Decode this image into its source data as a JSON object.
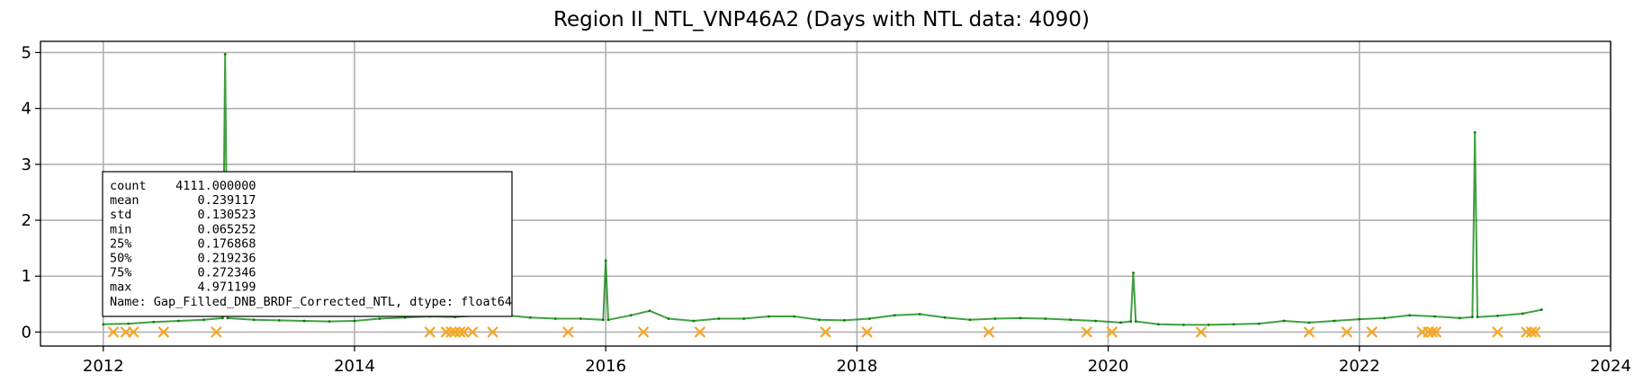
{
  "title": "Region II_NTL_VNP46A2 (Days with NTL data: 4090)",
  "chart_data": {
    "type": "line",
    "title": "Region II_NTL_VNP46A2 (Days with NTL data: 4090)",
    "xlabel": "",
    "ylabel": "",
    "xlim": [
      2011.5,
      2024.0
    ],
    "ylim": [
      -0.25,
      5.2
    ],
    "grid": true,
    "x_ticks": [
      "2012",
      "2014",
      "2016",
      "2018",
      "2020",
      "2022",
      "2024"
    ],
    "y_ticks": [
      "0",
      "1",
      "2",
      "3",
      "4",
      "5"
    ],
    "series": [
      {
        "color": "#008000",
        "style": "line",
        "x": [
          2012.0,
          2012.2,
          2012.4,
          2012.6,
          2012.8,
          2012.95,
          2012.97,
          2012.99,
          2013.2,
          2013.4,
          2013.6,
          2013.8,
          2014.0,
          2014.2,
          2014.4,
          2014.6,
          2014.8,
          2015.0,
          2015.2,
          2015.4,
          2015.6,
          2015.8,
          2015.98,
          2016.0,
          2016.02,
          2016.2,
          2016.35,
          2016.5,
          2016.7,
          2016.9,
          2017.1,
          2017.3,
          2017.5,
          2017.7,
          2017.9,
          2018.1,
          2018.3,
          2018.5,
          2018.7,
          2018.9,
          2019.1,
          2019.3,
          2019.5,
          2019.7,
          2019.9,
          2020.1,
          2020.18,
          2020.2,
          2020.22,
          2020.4,
          2020.6,
          2020.8,
          2021.0,
          2021.2,
          2021.4,
          2021.6,
          2021.8,
          2022.0,
          2022.2,
          2022.4,
          2022.6,
          2022.8,
          2022.9,
          2022.92,
          2022.94,
          2023.1,
          2023.3,
          2023.45
        ],
        "values": [
          0.14,
          0.15,
          0.18,
          0.2,
          0.22,
          0.25,
          4.97,
          0.25,
          0.22,
          0.21,
          0.2,
          0.19,
          0.2,
          0.24,
          0.26,
          0.28,
          0.27,
          0.3,
          0.3,
          0.26,
          0.24,
          0.24,
          0.22,
          1.28,
          0.22,
          0.3,
          0.38,
          0.24,
          0.2,
          0.24,
          0.24,
          0.28,
          0.28,
          0.22,
          0.21,
          0.24,
          0.3,
          0.32,
          0.26,
          0.22,
          0.24,
          0.25,
          0.24,
          0.22,
          0.2,
          0.17,
          0.19,
          1.06,
          0.19,
          0.14,
          0.13,
          0.13,
          0.14,
          0.15,
          0.2,
          0.17,
          0.2,
          0.23,
          0.25,
          0.3,
          0.28,
          0.25,
          0.27,
          3.57,
          0.27,
          0.29,
          0.33,
          0.4
        ]
      },
      {
        "color": "#f5a623",
        "style": "x-markers",
        "x": [
          2012.08,
          2012.18,
          2012.24,
          2012.48,
          2012.9,
          2014.6,
          2014.73,
          2014.77,
          2014.8,
          2014.84,
          2014.87,
          2014.94,
          2015.1,
          2015.7,
          2016.3,
          2016.75,
          2017.75,
          2018.08,
          2019.05,
          2019.83,
          2020.03,
          2020.74,
          2021.6,
          2021.9,
          2022.1,
          2022.5,
          2022.55,
          2022.58,
          2022.61,
          2023.1,
          2023.33,
          2023.37,
          2023.4
        ],
        "values": [
          0,
          0,
          0,
          0,
          0,
          0,
          0,
          0,
          0,
          0,
          0,
          0,
          0,
          0,
          0,
          0,
          0,
          0,
          0,
          0,
          0,
          0,
          0,
          0,
          0,
          0,
          0,
          0,
          0,
          0,
          0,
          0,
          0
        ]
      }
    ],
    "stats_box": [
      "count    4111.000000",
      "mean        0.239117",
      "std         0.130523",
      "min         0.065252",
      "25%         0.176868",
      "50%         0.219236",
      "75%         0.272346",
      "max         4.971199",
      "Name: Gap_Filled_DNB_BRDF_Corrected_NTL, dtype: float64"
    ]
  }
}
